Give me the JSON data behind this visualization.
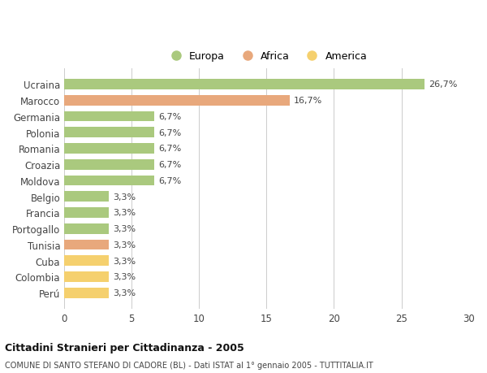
{
  "countries": [
    "Ucraina",
    "Marocco",
    "Germania",
    "Polonia",
    "Romania",
    "Croazia",
    "Moldova",
    "Belgio",
    "Francia",
    "Portogallo",
    "Tunisia",
    "Cuba",
    "Colombia",
    "Perú"
  ],
  "values": [
    26.7,
    16.7,
    6.7,
    6.7,
    6.7,
    6.7,
    6.7,
    3.3,
    3.3,
    3.3,
    3.3,
    3.3,
    3.3,
    3.3
  ],
  "labels": [
    "26,7%",
    "16,7%",
    "6,7%",
    "6,7%",
    "6,7%",
    "6,7%",
    "6,7%",
    "3,3%",
    "3,3%",
    "3,3%",
    "3,3%",
    "3,3%",
    "3,3%",
    "3,3%"
  ],
  "continents": [
    "Europa",
    "Africa",
    "Europa",
    "Europa",
    "Europa",
    "Europa",
    "Europa",
    "Europa",
    "Europa",
    "Europa",
    "Africa",
    "America",
    "America",
    "America"
  ],
  "colors": {
    "Europa": "#aac97e",
    "Africa": "#e8a87c",
    "America": "#f5d06e"
  },
  "legend_order": [
    "Europa",
    "Africa",
    "America"
  ],
  "xlim": [
    0,
    30
  ],
  "xticks": [
    0,
    5,
    10,
    15,
    20,
    25,
    30
  ],
  "title": "Cittadini Stranieri per Cittadinanza - 2005",
  "subtitle": "COMUNE DI SANTO STEFANO DI CADORE (BL) - Dati ISTAT al 1° gennaio 2005 - TUTTITALIA.IT",
  "background_color": "#ffffff",
  "grid_color": "#cccccc",
  "bar_height": 0.65
}
